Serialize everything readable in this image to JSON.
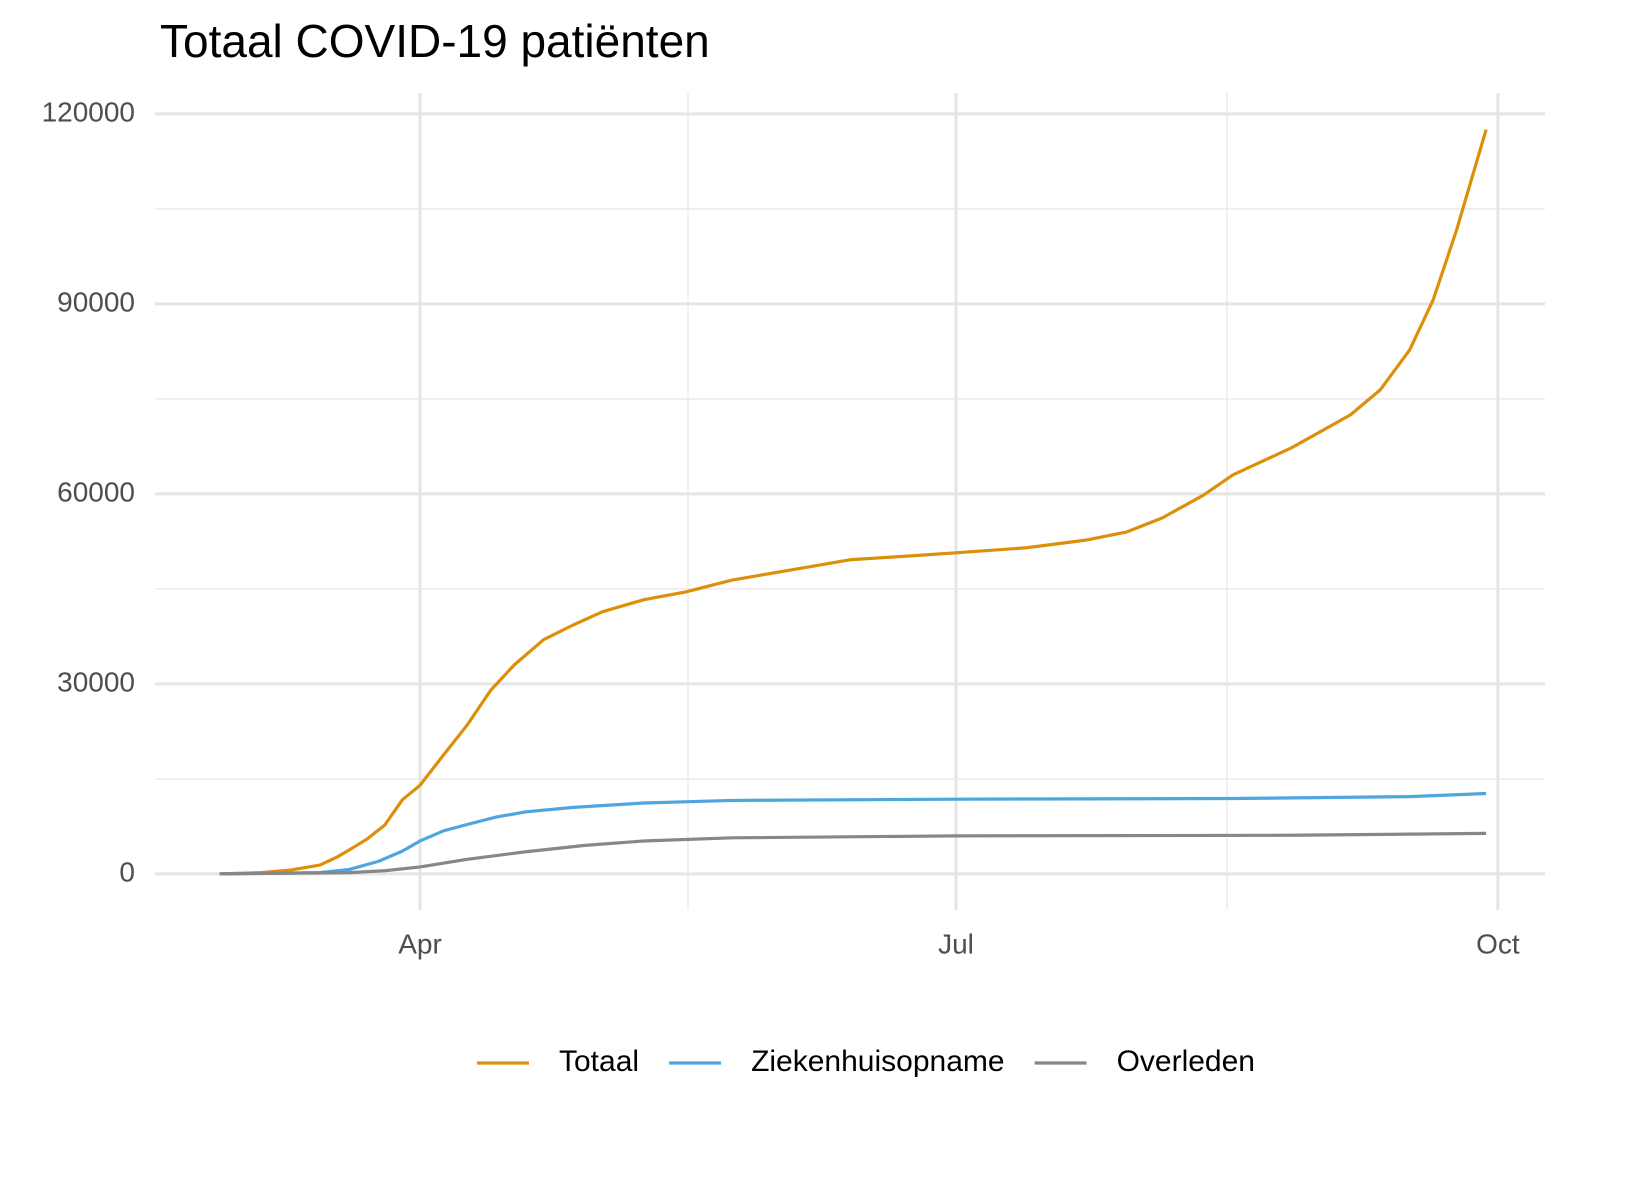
{
  "chart_data": {
    "type": "line",
    "title": "Totaal COVID-19 patiënten",
    "xlim": [
      47,
      283
    ],
    "xticks": [
      {
        "value": 92,
        "label": "Apr"
      },
      {
        "value": 183,
        "label": "Jul"
      },
      {
        "value": 275,
        "label": "Oct"
      }
    ],
    "xminorticks": [
      137.5,
      229
    ],
    "ylim": [
      -5700,
      123300
    ],
    "yticks": [
      0,
      30000,
      60000,
      90000,
      120000
    ],
    "yminorticks": [
      15000,
      45000,
      75000,
      105000
    ],
    "grid": true,
    "legend": "bottom",
    "series": [
      {
        "name": "Totaal",
        "color": "#dc8f08",
        "x": [
          58,
          65,
          70,
          75,
          78,
          80,
          83,
          86,
          89,
          92,
          96,
          100,
          104,
          108,
          113,
          118,
          123,
          130,
          137,
          145,
          155,
          165,
          175,
          183,
          195,
          205,
          212,
          218,
          225,
          230,
          240,
          250,
          255,
          260,
          264,
          268,
          273
        ],
        "values": [
          0,
          200,
          600,
          1400,
          2700,
          3800,
          5500,
          7700,
          11700,
          14000,
          18800,
          23500,
          29000,
          33000,
          37000,
          39300,
          41400,
          43300,
          44500,
          46400,
          48000,
          49600,
          50200,
          50700,
          51500,
          52700,
          54000,
          56200,
          59800,
          63000,
          67300,
          72500,
          76400,
          82700,
          90600,
          101700,
          117500
        ]
      },
      {
        "name": "Ziekenhuisopname",
        "color": "#4fa5df",
        "x": [
          58,
          75,
          80,
          85,
          89,
          92,
          96,
          100,
          105,
          110,
          118,
          130,
          145,
          183,
          230,
          260,
          273
        ],
        "values": [
          0,
          200,
          700,
          2000,
          3600,
          5200,
          6800,
          7800,
          9000,
          9800,
          10500,
          11200,
          11600,
          11800,
          11900,
          12200,
          12700
        ]
      },
      {
        "name": "Overleden",
        "color": "#878787",
        "x": [
          58,
          80,
          86,
          92,
          100,
          110,
          120,
          130,
          145,
          183,
          240,
          273
        ],
        "values": [
          0,
          200,
          500,
          1100,
          2300,
          3500,
          4500,
          5200,
          5700,
          6000,
          6100,
          6400
        ]
      }
    ]
  }
}
